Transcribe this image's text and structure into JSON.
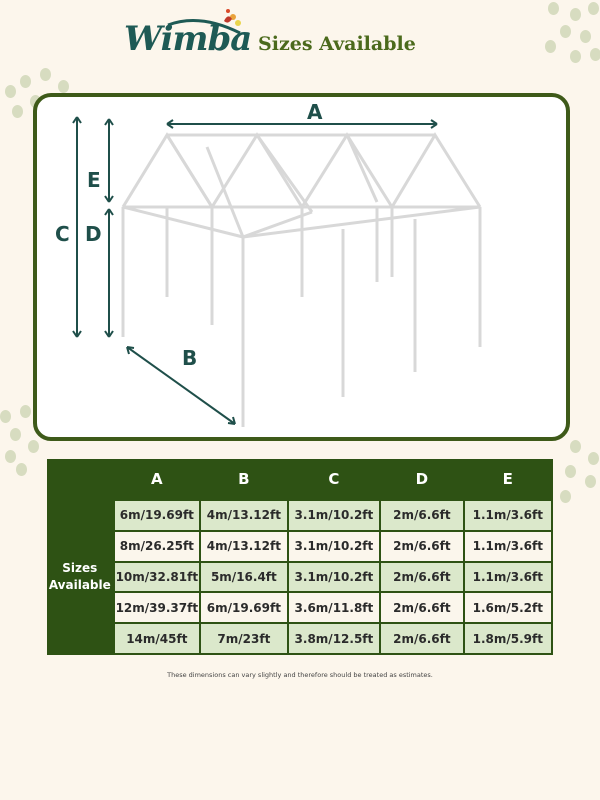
{
  "brand": {
    "logo_text": "Wimba"
  },
  "header": {
    "title": "Sizes Available"
  },
  "diagram": {
    "labels": [
      "A",
      "B",
      "C",
      "D",
      "E"
    ]
  },
  "table": {
    "row_header": "Sizes Available",
    "columns": [
      "A",
      "B",
      "C",
      "D",
      "E"
    ],
    "rows": [
      [
        "6m/19.69ft",
        "4m/13.12ft",
        "3.1m/10.2ft",
        "2m/6.6ft",
        "1.1m/3.6ft"
      ],
      [
        "8m/26.25ft",
        "4m/13.12ft",
        "3.1m/10.2ft",
        "2m/6.6ft",
        "1.1m/3.6ft"
      ],
      [
        "10m/32.81ft",
        "5m/16.4ft",
        "3.1m/10.2ft",
        "2m/6.6ft",
        "1.1m/3.6ft"
      ],
      [
        "12m/39.37ft",
        "6m/19.69ft",
        "3.6m/11.8ft",
        "2m/6.6ft",
        "1.6m/5.2ft"
      ],
      [
        "14m/45ft",
        "7m/23ft",
        "3.8m/12.5ft",
        "2m/6.6ft",
        "1.8m/5.9ft"
      ]
    ]
  },
  "footnote": "These dimensions can vary slightly and therefore should be treated as estimates.",
  "colors": {
    "background": "#fcf6ec",
    "dark_green": "#2e5214",
    "light_green": "#dbe8cb",
    "brand_teal": "#1e5a55",
    "title_green": "#4b6a1c"
  }
}
